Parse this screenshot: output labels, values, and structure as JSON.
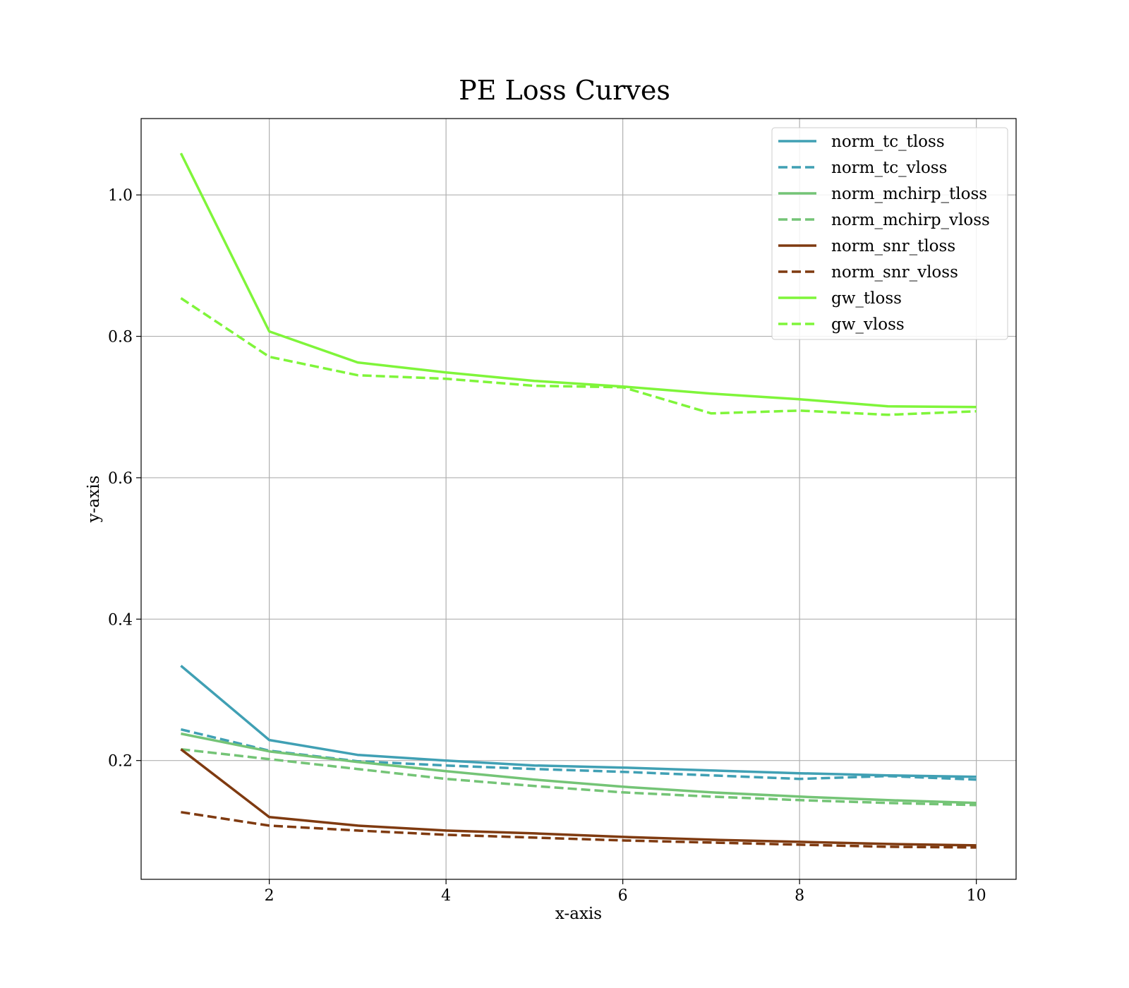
{
  "chart_data": {
    "type": "line",
    "title": "PE Loss Curves",
    "xlabel": "x-axis",
    "ylabel": "y-axis",
    "xlim": [
      0.55,
      10.45
    ],
    "ylim": [
      0.032,
      1.108
    ],
    "xticks": [
      2,
      4,
      6,
      8,
      10
    ],
    "xtick_labels": [
      "2",
      "4",
      "6",
      "8",
      "10"
    ],
    "yticks": [
      0.2,
      0.4,
      0.6,
      0.8,
      1.0
    ],
    "ytick_labels": [
      "0.2",
      "0.4",
      "0.6",
      "0.8",
      "1.0"
    ],
    "grid": true,
    "legend_position": "top-right",
    "x": [
      1,
      2,
      3,
      4,
      5,
      6,
      7,
      8,
      9,
      10
    ],
    "series": [
      {
        "name": "norm_tc_tloss",
        "color": "#40a0b4",
        "style": "solid",
        "values": [
          0.334,
          0.229,
          0.208,
          0.2,
          0.193,
          0.19,
          0.186,
          0.182,
          0.179,
          0.177
        ]
      },
      {
        "name": "norm_tc_vloss",
        "color": "#40a0b4",
        "style": "dashed",
        "values": [
          0.244,
          0.214,
          0.199,
          0.193,
          0.188,
          0.184,
          0.179,
          0.174,
          0.178,
          0.173
        ]
      },
      {
        "name": "norm_mchirp_tloss",
        "color": "#74c476",
        "style": "solid",
        "values": [
          0.238,
          0.213,
          0.198,
          0.185,
          0.173,
          0.163,
          0.155,
          0.149,
          0.144,
          0.14
        ]
      },
      {
        "name": "norm_mchirp_vloss",
        "color": "#74c476",
        "style": "dashed",
        "values": [
          0.216,
          0.202,
          0.188,
          0.174,
          0.164,
          0.155,
          0.149,
          0.144,
          0.14,
          0.137
        ]
      },
      {
        "name": "norm_snr_tloss",
        "color": "#7f3a10",
        "style": "solid",
        "values": [
          0.216,
          0.12,
          0.108,
          0.101,
          0.097,
          0.092,
          0.088,
          0.085,
          0.082,
          0.08
        ]
      },
      {
        "name": "norm_snr_vloss",
        "color": "#7f3a10",
        "style": "dashed",
        "values": [
          0.127,
          0.108,
          0.101,
          0.095,
          0.091,
          0.087,
          0.084,
          0.081,
          0.078,
          0.077
        ]
      },
      {
        "name": "gw_tloss",
        "color": "#7ff53a",
        "style": "solid",
        "values": [
          1.059,
          0.807,
          0.763,
          0.749,
          0.737,
          0.729,
          0.719,
          0.711,
          0.701,
          0.7
        ]
      },
      {
        "name": "gw_vloss",
        "color": "#7ff53a",
        "style": "dashed",
        "values": [
          0.854,
          0.771,
          0.745,
          0.74,
          0.73,
          0.728,
          0.691,
          0.695,
          0.689,
          0.694
        ]
      }
    ]
  }
}
